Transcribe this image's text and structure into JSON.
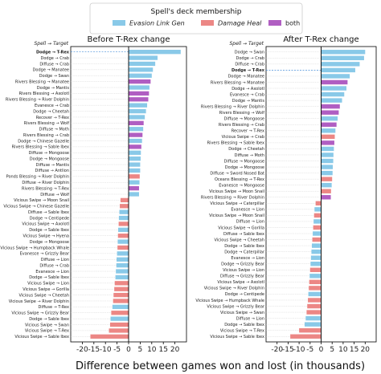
{
  "chart_data": {
    "type": "bar",
    "orientation": "horizontal",
    "xlabel": "Difference between games won and lost (in thousands)",
    "y_header": "Spell → Target",
    "xlim": [
      -25,
      25
    ],
    "xticks": [
      -20,
      -15,
      -10,
      -5,
      0,
      5,
      10,
      15,
      20
    ],
    "xtick_labels": [
      "-20",
      "-15",
      "-10",
      "-5",
      "0",
      "5",
      "10",
      "15",
      "20"
    ],
    "legend": {
      "title": "Spell's deck membership",
      "placement": "top-center",
      "entries": [
        {
          "key": "evasion",
          "label": "Evasion Link Gen",
          "italic": true
        },
        {
          "key": "damage",
          "label": "Damage Heal",
          "italic": true
        },
        {
          "key": "both",
          "label": "both",
          "italic": false
        }
      ]
    },
    "colors": {
      "evasion": "#89c9e8",
      "damage": "#ec8785",
      "both": "#b05ec2",
      "axis": "#000000",
      "highlight": "#4a90d9"
    },
    "panels": [
      {
        "title": "Before T-Rex change",
        "highlight": "Dodge → T-Rex",
        "bars": [
          {
            "label": "Dodge → T-Rex",
            "value": 22.5,
            "group": "evasion",
            "bold": true
          },
          {
            "label": "Dodge → Crab",
            "value": 12.5,
            "group": "evasion"
          },
          {
            "label": "Diffuse → Crab",
            "value": 11.5,
            "group": "evasion"
          },
          {
            "label": "Dodge → Manatee",
            "value": 10.5,
            "group": "evasion"
          },
          {
            "label": "Dodge → Swan",
            "value": 10,
            "group": "evasion"
          },
          {
            "label": "Rivers Blessing → Manatee",
            "value": 9.5,
            "group": "both"
          },
          {
            "label": "Dodge → Mantis",
            "value": 9,
            "group": "evasion"
          },
          {
            "label": "Rivers Blessing → Axolotl",
            "value": 8.8,
            "group": "both"
          },
          {
            "label": "Rivers Blessing → River Dolphin",
            "value": 8.5,
            "group": "both"
          },
          {
            "label": "Evanesce → Crab",
            "value": 8,
            "group": "evasion"
          },
          {
            "label": "Dodge → Cheetah",
            "value": 7.5,
            "group": "evasion"
          },
          {
            "label": "Recover → T-Rex",
            "value": 7,
            "group": "evasion"
          },
          {
            "label": "Rivers Blessing → Wolf",
            "value": 6.5,
            "group": "both"
          },
          {
            "label": "Diffuse → Moth",
            "value": 6.3,
            "group": "evasion"
          },
          {
            "label": "Rivers Blessing → Crab",
            "value": 6,
            "group": "both"
          },
          {
            "label": "Dodge → Chinese Gazelle",
            "value": 5.8,
            "group": "evasion"
          },
          {
            "label": "Rivers Blessing → Sable Ibex",
            "value": 5.5,
            "group": "both"
          },
          {
            "label": "Diffuse → Mongoose",
            "value": 5.3,
            "group": "evasion"
          },
          {
            "label": "Dodge → Mongoose",
            "value": 5.2,
            "group": "evasion"
          },
          {
            "label": "Diffuse → Mantis",
            "value": 5,
            "group": "evasion"
          },
          {
            "label": "Diffuse → Antlion",
            "value": 5,
            "group": "evasion"
          },
          {
            "label": "Ponds Blessing → River Dolphin",
            "value": 4.8,
            "group": "damage"
          },
          {
            "label": "Diffuse → River Dolphin",
            "value": 4.7,
            "group": "evasion"
          },
          {
            "label": "Rivers Blessing → T-Rex",
            "value": 4.5,
            "group": "both"
          },
          {
            "label": "Diffuse → Wolf",
            "value": 4.5,
            "group": "evasion"
          },
          {
            "label": "Vicious Swipe → Moon Snail",
            "value": -3.5,
            "group": "damage"
          },
          {
            "label": "Vicious Swipe → Chinese Gazelle",
            "value": -3.8,
            "group": "damage"
          },
          {
            "label": "Diffuse → Sable Ibex",
            "value": -4,
            "group": "evasion"
          },
          {
            "label": "Dodge → Centipede",
            "value": -4.2,
            "group": "evasion"
          },
          {
            "label": "Vicious Swipe → Axolotl",
            "value": -4.3,
            "group": "damage"
          },
          {
            "label": "Dodge → Sable Ibex",
            "value": -4.5,
            "group": "evasion"
          },
          {
            "label": "Vicious Swipe → Hyena",
            "value": -4.6,
            "group": "damage"
          },
          {
            "label": "Dodge → Mongoose",
            "value": -4.7,
            "group": "evasion"
          },
          {
            "label": "Vicious Swipe → Humpback Whale",
            "value": -4.8,
            "group": "damage"
          },
          {
            "label": "Evanesce → Grizzly Bear",
            "value": -5,
            "group": "evasion"
          },
          {
            "label": "Diffuse → Lion",
            "value": -5.2,
            "group": "evasion"
          },
          {
            "label": "Diffuse → Crab",
            "value": -5.3,
            "group": "evasion"
          },
          {
            "label": "Evanesce → Lion",
            "value": -5.5,
            "group": "evasion"
          },
          {
            "label": "Dodge → Sable Ibex",
            "value": -5.7,
            "group": "evasion"
          },
          {
            "label": "Vicious Swipe → Lion",
            "value": -6,
            "group": "damage"
          },
          {
            "label": "Vicious Swipe → Gorilla",
            "value": -6.2,
            "group": "damage"
          },
          {
            "label": "Vicious Swipe → Cheetah",
            "value": -6.5,
            "group": "damage"
          },
          {
            "label": "Vicious Swipe → River Dolphin",
            "value": -6.7,
            "group": "damage"
          },
          {
            "label": "Diffuse → T-Rex",
            "value": -7,
            "group": "evasion"
          },
          {
            "label": "Vicious Swipe → Grizzly Bear",
            "value": -7.5,
            "group": "damage"
          },
          {
            "label": "Dodge → Sable Ibex",
            "value": -7.8,
            "group": "evasion"
          },
          {
            "label": "Vicious Swipe → Swan",
            "value": -8,
            "group": "damage"
          },
          {
            "label": "Vicious Swipe → T-Rex",
            "value": -8.5,
            "group": "damage"
          },
          {
            "label": "Vicious Swipe → Sable Ibex",
            "value": -16.5,
            "group": "damage"
          }
        ]
      },
      {
        "title": "After T-Rex change",
        "highlight": "Dodge → T-Rex",
        "bars": [
          {
            "label": "Dodge → Swan",
            "value": 20,
            "group": "evasion"
          },
          {
            "label": "Dodge → Crab",
            "value": 19.5,
            "group": "evasion"
          },
          {
            "label": "Diffuse → Crab",
            "value": 17.5,
            "group": "evasion"
          },
          {
            "label": "Dodge → T-Rex",
            "value": 15.5,
            "group": "evasion",
            "bold": true
          },
          {
            "label": "Dodge → Manatee",
            "value": 13,
            "group": "evasion"
          },
          {
            "label": "Rivers Blessing → Manatee",
            "value": 12,
            "group": "both"
          },
          {
            "label": "Dodge → Axolotl",
            "value": 11.5,
            "group": "evasion"
          },
          {
            "label": "Evanesce → Crab",
            "value": 10.5,
            "group": "evasion"
          },
          {
            "label": "Dodge → Mantis",
            "value": 9.5,
            "group": "evasion"
          },
          {
            "label": "Rivers Blessing → River Dolphin",
            "value": 8.5,
            "group": "both"
          },
          {
            "label": "Rivers Blessing → Wolf",
            "value": 8,
            "group": "both"
          },
          {
            "label": "Diffuse → Mongoose",
            "value": 7.5,
            "group": "evasion"
          },
          {
            "label": "Rivers Blessing → Crab",
            "value": 7,
            "group": "both"
          },
          {
            "label": "Recover → T-Rex",
            "value": 6.5,
            "group": "evasion"
          },
          {
            "label": "Vicious Swipe → Crab",
            "value": 6.2,
            "group": "damage"
          },
          {
            "label": "Rivers Blessing → Sable Ibex",
            "value": 6,
            "group": "both"
          },
          {
            "label": "Dodge → Cheetah",
            "value": 5.8,
            "group": "evasion"
          },
          {
            "label": "Diffuse → Moth",
            "value": 5.6,
            "group": "evasion"
          },
          {
            "label": "Diffuse → Mongoose",
            "value": 5.5,
            "group": "evasion"
          },
          {
            "label": "Dodge → Mongoose",
            "value": 5.3,
            "group": "evasion"
          },
          {
            "label": "Diffuse → Sword Nosed Bat",
            "value": 5.2,
            "group": "evasion"
          },
          {
            "label": "Oceans Blessing → T-Rex",
            "value": 5,
            "group": "damage"
          },
          {
            "label": "Evanesce → Mongoose",
            "value": 4.8,
            "group": "evasion"
          },
          {
            "label": "Vicious Swipe → Moon Snail",
            "value": 4.5,
            "group": "damage"
          },
          {
            "label": "Rivers Blessing → River Dolphin",
            "value": 4.4,
            "group": "both"
          },
          {
            "label": "Vicious Swipe → Caterpillar",
            "value": -2.5,
            "group": "damage"
          },
          {
            "label": "Evanesce → Lion",
            "value": -3,
            "group": "evasion"
          },
          {
            "label": "Vicious Swipe → Moon Snail",
            "value": -3.2,
            "group": "damage"
          },
          {
            "label": "Diffuse → Lion",
            "value": -3.4,
            "group": "evasion"
          },
          {
            "label": "Vicious Swipe → Gorilla",
            "value": -3.6,
            "group": "damage"
          },
          {
            "label": "Diffuse → Sable Ibex",
            "value": -3.8,
            "group": "evasion"
          },
          {
            "label": "Vicious Swipe → Cheetah",
            "value": -4,
            "group": "damage"
          },
          {
            "label": "Dodge → Sable Ibex",
            "value": -4.2,
            "group": "evasion"
          },
          {
            "label": "Dodge → Caterpillar",
            "value": -4.4,
            "group": "evasion"
          },
          {
            "label": "Evanesce → Lion",
            "value": -4.6,
            "group": "evasion"
          },
          {
            "label": "Dodge → Grizzly Bear",
            "value": -4.8,
            "group": "evasion"
          },
          {
            "label": "Vicious Swipe → Lion",
            "value": -5,
            "group": "damage"
          },
          {
            "label": "Diffuse → Grizzly Bear",
            "value": -5.2,
            "group": "evasion"
          },
          {
            "label": "Vicious Swipe → Axolotl",
            "value": -5.4,
            "group": "damage"
          },
          {
            "label": "Vicious Swipe → River Dolphin",
            "value": -5.6,
            "group": "damage"
          },
          {
            "label": "Dodge → Centipede",
            "value": -5.8,
            "group": "evasion"
          },
          {
            "label": "Vicious Swipe → Humpback Whale",
            "value": -6,
            "group": "damage"
          },
          {
            "label": "Vicious Swipe → Grizzly Bear",
            "value": -6.3,
            "group": "damage"
          },
          {
            "label": "Vicious Swipe → Swan",
            "value": -6.6,
            "group": "damage"
          },
          {
            "label": "Diffuse → Lion",
            "value": -7,
            "group": "evasion"
          },
          {
            "label": "Dodge → Sable Ibex",
            "value": -7.5,
            "group": "evasion"
          },
          {
            "label": "Vicious Swipe → T-Rex",
            "value": -10,
            "group": "damage"
          },
          {
            "label": "Vicious Swipe → Sable Ibex",
            "value": -14,
            "group": "damage"
          }
        ]
      }
    ]
  }
}
